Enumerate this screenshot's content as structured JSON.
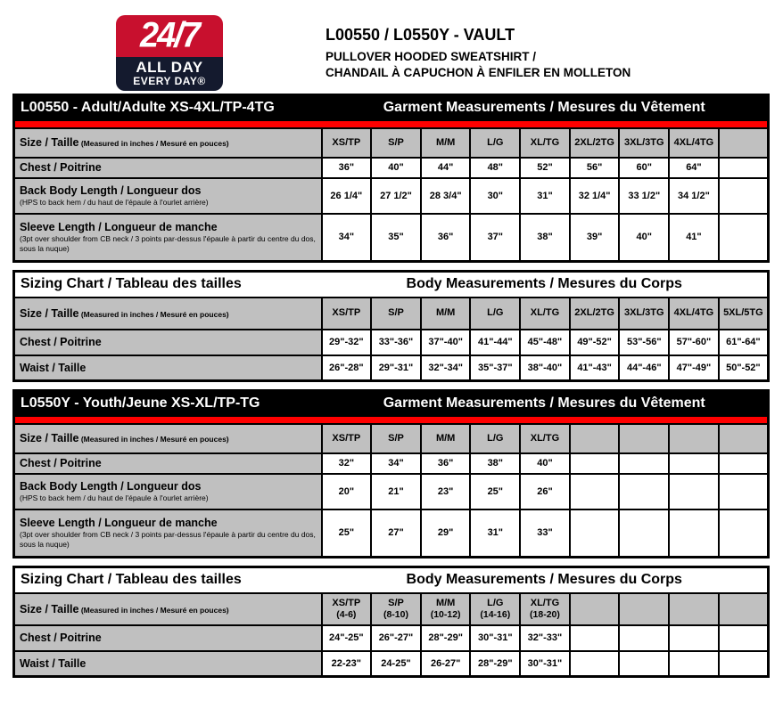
{
  "page": {
    "logo": {
      "line1": "24/7",
      "line2": "ALL DAY",
      "line3": "EVERY DAY®",
      "red": "#C8102E",
      "navy": "#141A2E"
    },
    "title": "L00550 / L0550Y - VAULT",
    "subtitle1": "PULLOVER HOODED SWEATSHIRT /",
    "subtitle2": "CHANDAIL À CAPUCHON À ENFILER EN MOLLETON"
  },
  "colors": {
    "stripe_red": "#FF0000",
    "cell_gray": "#C0C0C0",
    "header_black": "#000000"
  },
  "tables": [
    {
      "style": "garment",
      "header_left": "L00550 - Adult/Adulte XS-4XL/TP-4TG",
      "header_right": "Garment Measurements / Mesures du Vêtement",
      "size_label": "Size / Taille",
      "size_note": "(Measured in inches / Mesuré en pouces)",
      "columns": [
        {
          "label": "XS/TP",
          "sub": ""
        },
        {
          "label": "S/P",
          "sub": ""
        },
        {
          "label": "M/M",
          "sub": ""
        },
        {
          "label": "L/G",
          "sub": ""
        },
        {
          "label": "XL/TG",
          "sub": ""
        },
        {
          "label": "2XL/2TG",
          "sub": ""
        },
        {
          "label": "3XL/3TG",
          "sub": ""
        },
        {
          "label": "4XL/4TG",
          "sub": ""
        },
        {
          "label": "",
          "sub": ""
        }
      ],
      "rows": [
        {
          "label": "Chest / Poitrine",
          "sub": "",
          "values": [
            "36\"",
            "40\"",
            "44\"",
            "48\"",
            "52\"",
            "56\"",
            "60\"",
            "64\"",
            ""
          ]
        },
        {
          "label": "Back Body Length / Longueur dos",
          "sub": "(HPS to back hem  / du haut de l'épaule à l'ourlet arrière)",
          "values": [
            "26 1/4\"",
            "27 1/2\"",
            "28 3/4\"",
            "30\"",
            "31\"",
            "32 1/4\"",
            "33 1/2\"",
            "34 1/2\"",
            ""
          ]
        },
        {
          "label": "Sleeve Length / Longueur de manche",
          "sub": "(3pt over shoulder from CB neck / 3 points par-dessus l'épaule à partir du centre du dos, sous la nuque)",
          "values": [
            "34\"",
            "35\"",
            "36\"",
            "37\"",
            "38\"",
            "39\"",
            "40\"",
            "41\"",
            ""
          ]
        }
      ]
    },
    {
      "style": "body",
      "header_left": "Sizing Chart / Tableau des tailles",
      "header_right": "Body Measurements / Mesures du Corps",
      "size_label": "Size / Taille",
      "size_note": "(Measured in inches / Mesuré en pouces)",
      "columns": [
        {
          "label": "XS/TP",
          "sub": ""
        },
        {
          "label": "S/P",
          "sub": ""
        },
        {
          "label": "M/M",
          "sub": ""
        },
        {
          "label": "L/G",
          "sub": ""
        },
        {
          "label": "XL/TG",
          "sub": ""
        },
        {
          "label": "2XL/2TG",
          "sub": ""
        },
        {
          "label": "3XL/3TG",
          "sub": ""
        },
        {
          "label": "4XL/4TG",
          "sub": ""
        },
        {
          "label": "5XL/5TG",
          "sub": ""
        }
      ],
      "rows": [
        {
          "label": "Chest / Poitrine",
          "sub": "",
          "values": [
            "29\"-32\"",
            "33\"-36\"",
            "37\"-40\"",
            "41\"-44\"",
            "45\"-48\"",
            "49\"-52\"",
            "53\"-56\"",
            "57\"-60\"",
            "61\"-64\""
          ]
        },
        {
          "label": "Waist / Taille",
          "sub": "",
          "values": [
            "26\"-28\"",
            "29\"-31\"",
            "32\"-34\"",
            "35\"-37\"",
            "38\"-40\"",
            "41\"-43\"",
            "44\"-46\"",
            "47\"-49\"",
            "50\"-52\""
          ]
        }
      ]
    },
    {
      "style": "garment",
      "header_left": "L0550Y - Youth/Jeune XS-XL/TP-TG",
      "header_right": "Garment Measurements / Mesures du Vêtement",
      "size_label": "Size / Taille",
      "size_note": "(Measured in inches / Mesuré en pouces)",
      "columns": [
        {
          "label": "XS/TP",
          "sub": ""
        },
        {
          "label": "S/P",
          "sub": ""
        },
        {
          "label": "M/M",
          "sub": ""
        },
        {
          "label": "L/G",
          "sub": ""
        },
        {
          "label": "XL/TG",
          "sub": ""
        },
        {
          "label": "",
          "sub": ""
        },
        {
          "label": "",
          "sub": ""
        },
        {
          "label": "",
          "sub": ""
        },
        {
          "label": "",
          "sub": ""
        }
      ],
      "rows": [
        {
          "label": "Chest / Poitrine",
          "sub": "",
          "values": [
            "32\"",
            "34\"",
            "36\"",
            "38\"",
            "40\"",
            "",
            "",
            "",
            ""
          ]
        },
        {
          "label": "Back Body Length / Longueur dos",
          "sub": "(HPS to back hem  / du haut de l'épaule à l'ourlet arrière)",
          "values": [
            "20\"",
            "21\"",
            "23\"",
            "25\"",
            "26\"",
            "",
            "",
            "",
            ""
          ]
        },
        {
          "label": "Sleeve Length / Longueur de manche",
          "sub": "(3pt over shoulder from CB neck / 3 points par-dessus l'épaule à partir du centre du dos, sous la nuque)",
          "values": [
            "25\"",
            "27\"",
            "29\"",
            "31\"",
            "33\"",
            "",
            "",
            "",
            ""
          ]
        }
      ]
    },
    {
      "style": "body",
      "header_left": "Sizing Chart / Tableau des tailles",
      "header_right": "Body Measurements / Mesures du Corps",
      "size_label": "Size / Taille",
      "size_note": "(Measured in inches / Mesuré en pouces)",
      "columns": [
        {
          "label": "XS/TP",
          "sub": "(4-6)"
        },
        {
          "label": "S/P",
          "sub": "(8-10)"
        },
        {
          "label": "M/M",
          "sub": "(10-12)"
        },
        {
          "label": "L/G",
          "sub": "(14-16)"
        },
        {
          "label": "XL/TG",
          "sub": "(18-20)"
        },
        {
          "label": "",
          "sub": ""
        },
        {
          "label": "",
          "sub": ""
        },
        {
          "label": "",
          "sub": ""
        },
        {
          "label": "",
          "sub": ""
        }
      ],
      "rows": [
        {
          "label": "Chest / Poitrine",
          "sub": "",
          "values": [
            "24\"-25\"",
            "26\"-27\"",
            "28\"-29\"",
            "30\"-31\"",
            "32\"-33\"",
            "",
            "",
            "",
            ""
          ]
        },
        {
          "label": "Waist / Taille",
          "sub": "",
          "values": [
            "22-23\"",
            "24-25\"",
            "26-27\"",
            "28\"-29\"",
            "30\"-31\"",
            "",
            "",
            "",
            ""
          ]
        }
      ]
    }
  ]
}
